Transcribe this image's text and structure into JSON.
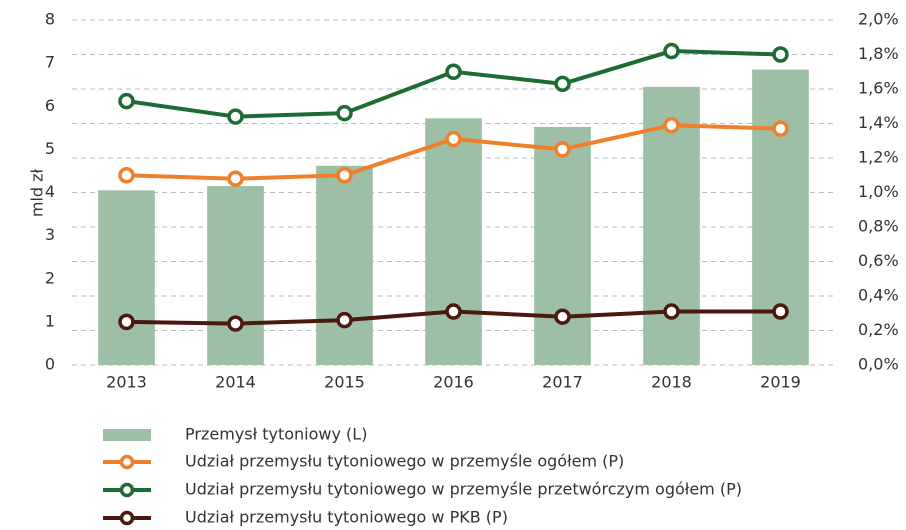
{
  "chart_data": {
    "type": "bar-line",
    "y_label": "mld zł",
    "categories": [
      "2013",
      "2014",
      "2015",
      "2016",
      "2017",
      "2018",
      "2019"
    ],
    "ylim": [
      0,
      8
    ],
    "yticks": [
      0,
      1,
      2,
      3,
      4,
      5,
      6,
      7,
      8
    ],
    "y2lim": [
      0,
      2.0
    ],
    "y2ticks": [
      {
        "value": 0,
        "label": "0,0%"
      },
      {
        "value": 0.2,
        "label": "0,2%"
      },
      {
        "value": 0.4,
        "label": "0,4%"
      },
      {
        "value": 0.6,
        "label": "0,6%"
      },
      {
        "value": 0.8,
        "label": "0,8%"
      },
      {
        "value": 1.0,
        "label": "1,0%"
      },
      {
        "value": 1.2,
        "label": "1,2%"
      },
      {
        "value": 1.4,
        "label": "1,4%"
      },
      {
        "value": 1.6,
        "label": "1,6%"
      },
      {
        "value": 1.8,
        "label": "1,8%"
      },
      {
        "value": 2.0,
        "label": "2,0%"
      }
    ],
    "grid": true,
    "series": [
      {
        "name": "Przemysł tytoniowy (L)",
        "type": "bar",
        "color": "#9dbfa6",
        "values": [
          4.05,
          4.15,
          4.62,
          5.72,
          5.52,
          6.45,
          6.85
        ]
      },
      {
        "name": "Udział przemysłu tytoniowego w przemyśle ogółem (P)",
        "type": "line",
        "axis": "y2",
        "color": "#f07f2c",
        "values": [
          1.1,
          1.08,
          1.1,
          1.31,
          1.25,
          1.39,
          1.37
        ]
      },
      {
        "name": "Udział przemysłu tytoniowego w przemyśle przetwórczym ogółem (P)",
        "type": "line",
        "axis": "y2",
        "color": "#1e6b35",
        "values": [
          1.53,
          1.44,
          1.46,
          1.7,
          1.63,
          1.82,
          1.8
        ]
      },
      {
        "name": "Udział przemysłu tytoniowego w PKB (P)",
        "type": "line",
        "axis": "y2",
        "color": "#4a1a0e",
        "values": [
          0.25,
          0.24,
          0.26,
          0.31,
          0.28,
          0.31,
          0.31
        ]
      }
    ]
  }
}
